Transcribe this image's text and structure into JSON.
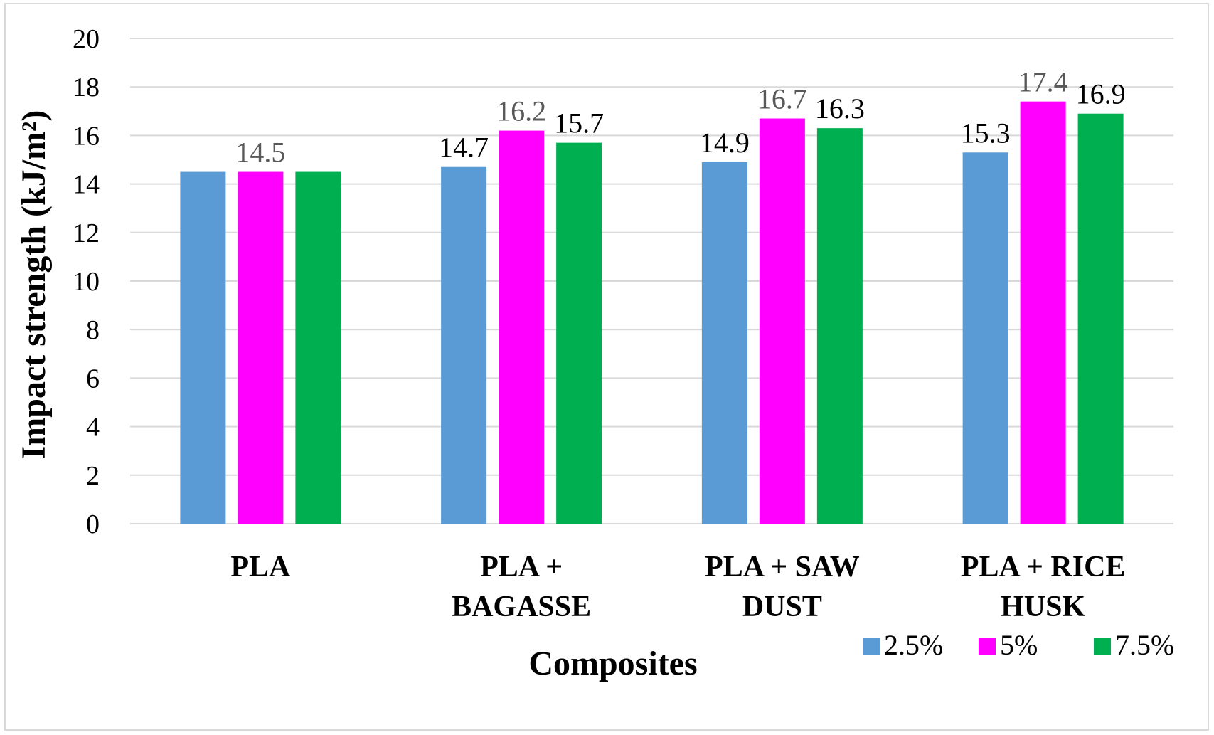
{
  "chart_data": {
    "type": "bar",
    "title": "",
    "xlabel": "Composites",
    "ylabel": "Impact strength (kJ/m²)",
    "ylim": [
      0,
      20
    ],
    "ytick_step": 2,
    "yticks": [
      "0",
      "2",
      "4",
      "6",
      "8",
      "10",
      "12",
      "14",
      "16",
      "18",
      "20"
    ],
    "grid": true,
    "legend_position": "bottom-right",
    "categories": [
      [
        "PLA"
      ],
      [
        "PLA +",
        "BAGASSE"
      ],
      [
        "PLA + SAW",
        "DUST"
      ],
      [
        "PLA + RICE",
        "HUSK"
      ]
    ],
    "series": [
      {
        "name": "2.5%",
        "color": "#5b9bd5",
        "values": [
          14.5,
          14.7,
          14.9,
          15.3
        ]
      },
      {
        "name": "5%",
        "color": "#ff00ff",
        "values": [
          14.5,
          16.2,
          16.7,
          17.4
        ]
      },
      {
        "name": "7.5%",
        "color": "#00b050",
        "values": [
          14.5,
          15.7,
          16.3,
          16.9
        ]
      }
    ],
    "data_labels": [
      [
        null,
        "14.7",
        "14.9",
        "15.3"
      ],
      [
        "14.5",
        "16.2",
        "16.7",
        "17.4"
      ],
      [
        null,
        "15.7",
        "16.3",
        "16.9"
      ]
    ],
    "data_label_colors": [
      [
        null,
        "#000000",
        "#000000",
        "#000000"
      ],
      [
        "#595959",
        "#595959",
        "#595959",
        "#595959"
      ],
      [
        null,
        "#000000",
        "#000000",
        "#000000"
      ]
    ]
  }
}
